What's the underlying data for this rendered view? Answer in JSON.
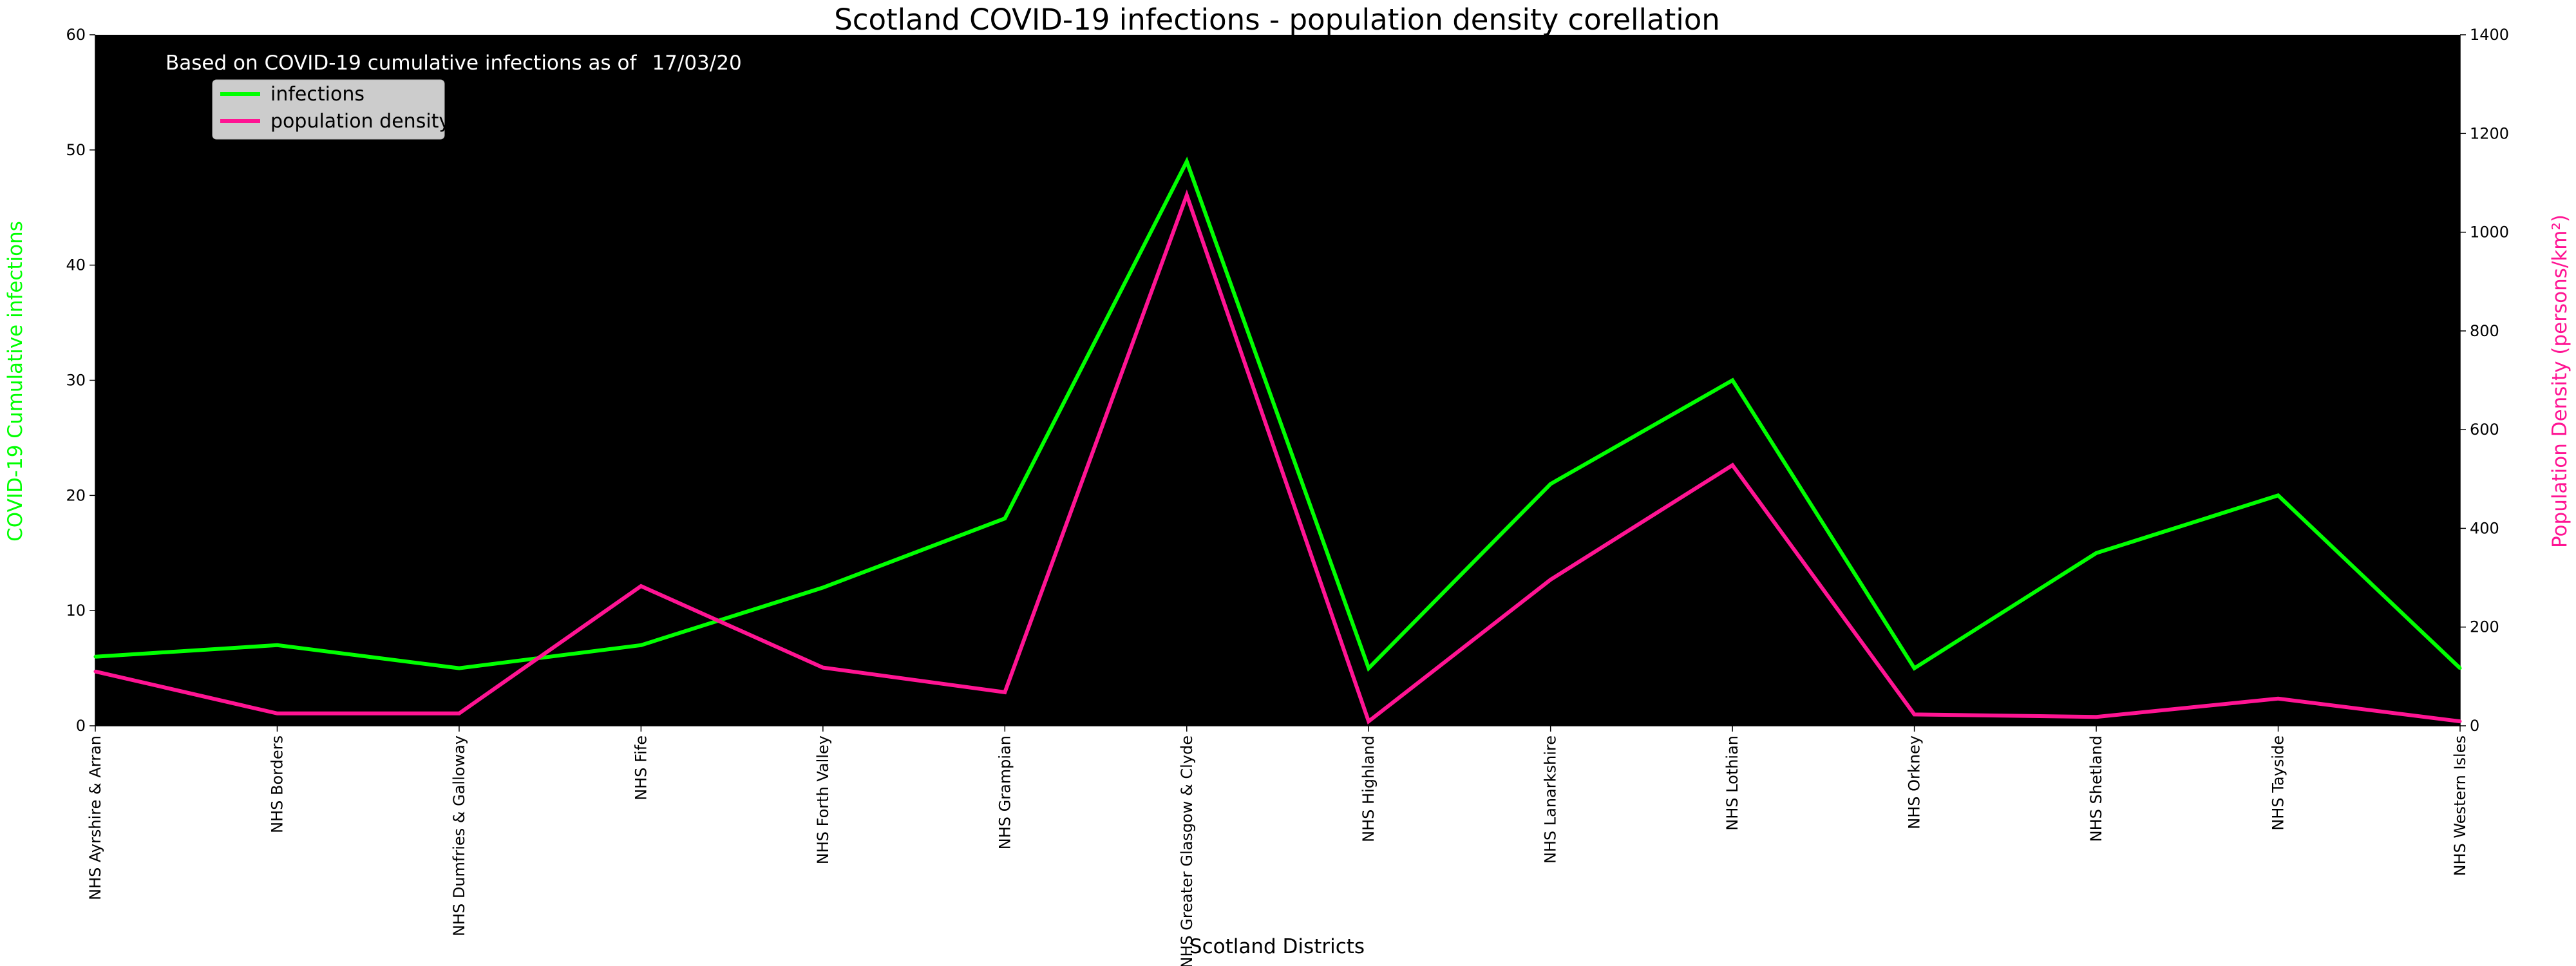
{
  "chart_data": {
    "type": "line",
    "title": "Scotland COVID-19 infections - population density corellation",
    "note_prefix": "Based on COVID-19 cumulative infections as of",
    "note_date": "17/03/20",
    "xlabel": "Scotland Districts",
    "ylabel_left": "COVID-19 Cumulative infections",
    "ylabel_right": "Population Density (persons/km²)",
    "ylim_left": [
      0,
      60
    ],
    "ylim_right": [
      0,
      1400
    ],
    "yticks_left": [
      0,
      10,
      20,
      30,
      40,
      50,
      60
    ],
    "yticks_right": [
      0,
      200,
      400,
      600,
      800,
      1000,
      1200,
      1400
    ],
    "legend_placement": "upper-left",
    "grid": false,
    "categories": [
      "NHS Ayrshire & Arran",
      "NHS Borders",
      "NHS Dumfries & Galloway",
      "NHS Fife",
      "NHS Forth Valley",
      "NHS Grampian",
      "NHS Greater Glasgow & Clyde",
      "NHS Highland",
      "NHS Lanarkshire",
      "NHS Lothian",
      "NHS Orkney",
      "NHS Shetland",
      "NHS Tayside",
      "NHS Western Isles"
    ],
    "series": [
      {
        "name": "infections",
        "axis": "left",
        "color": "#00ff00",
        "values": [
          6,
          7,
          5,
          7,
          12,
          18,
          49,
          5,
          21,
          30,
          5,
          15,
          20,
          5
        ]
      },
      {
        "name": "population density",
        "axis": "right",
        "color": "#ff1493",
        "values": [
          110,
          25,
          25,
          283,
          118,
          68,
          1075,
          9,
          296,
          528,
          23,
          18,
          55,
          9
        ]
      }
    ]
  }
}
